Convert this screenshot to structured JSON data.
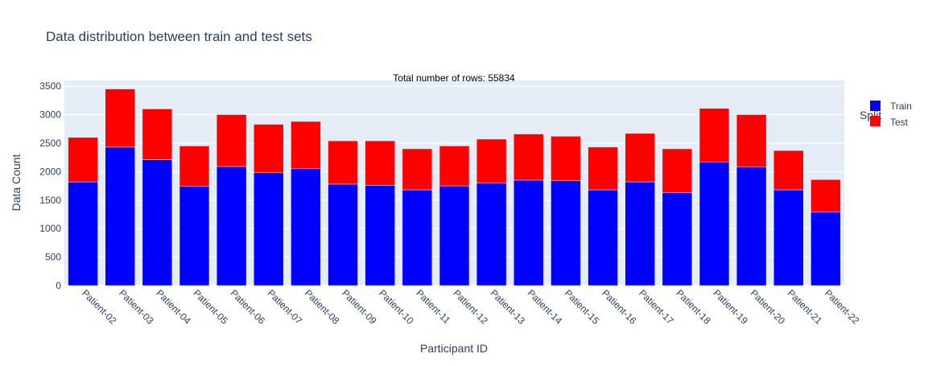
{
  "chart_data": {
    "type": "bar",
    "stacked": true,
    "title": "Data distribution between train and test sets",
    "annotation": "Total number of rows: 55834",
    "xlabel": "Participant ID",
    "ylabel": "Data Count",
    "ylim": [
      0,
      3600
    ],
    "yticks": [
      0,
      500,
      1000,
      1500,
      2000,
      2500,
      3000,
      3500
    ],
    "grid": true,
    "legend": {
      "title": "Split",
      "placement": "top-right"
    },
    "categories": [
      "Patient-02",
      "Patient-03",
      "Patient-04",
      "Patient-05",
      "Patient-06",
      "Patient-07",
      "Patient-08",
      "Patient-09",
      "Patient-10",
      "Patient-11",
      "Patient-12",
      "Patient-13",
      "Patient-14",
      "Patient-15",
      "Patient-16",
      "Patient-17",
      "Patient-18",
      "Patient-19",
      "Patient-20",
      "Patient-21",
      "Patient-22"
    ],
    "series": [
      {
        "name": "Train",
        "color": "#0000ff",
        "values": [
          1820,
          2430,
          2210,
          1740,
          2090,
          1980,
          2050,
          1780,
          1760,
          1680,
          1750,
          1800,
          1850,
          1840,
          1680,
          1820,
          1630,
          2170,
          2080,
          1680,
          1290
        ]
      },
      {
        "name": "Test",
        "color": "#ff0000",
        "values": [
          780,
          1020,
          890,
          710,
          910,
          850,
          830,
          760,
          780,
          720,
          700,
          770,
          810,
          780,
          750,
          850,
          770,
          940,
          920,
          690,
          570
        ]
      }
    ]
  }
}
